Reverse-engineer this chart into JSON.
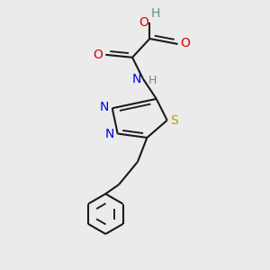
{
  "bg_color": "#ebebeb",
  "bond_color": "#1a1a1a",
  "bond_width": 1.5,
  "doff": 0.012,
  "figsize": [
    3.0,
    3.0
  ],
  "dpi": 100,
  "xlim": [
    0.0,
    1.0
  ],
  "ylim": [
    0.0,
    1.0
  ]
}
